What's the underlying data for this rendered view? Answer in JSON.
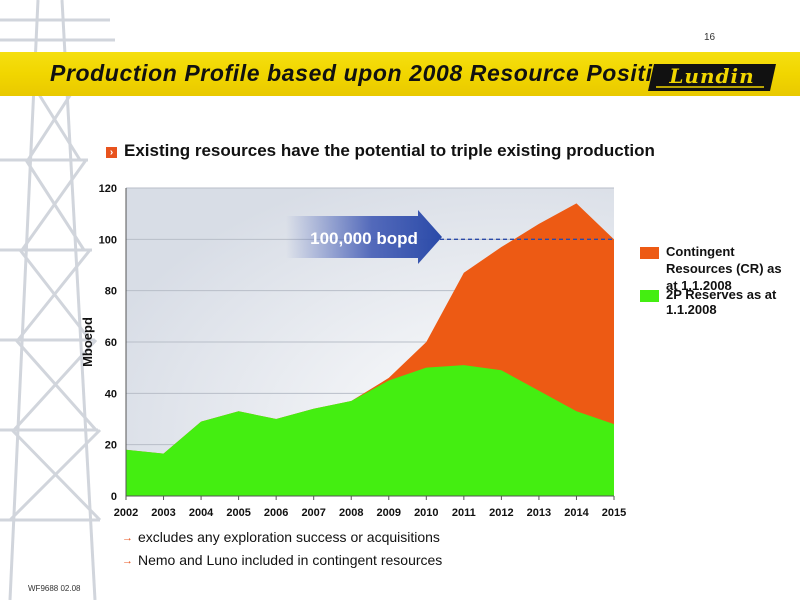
{
  "page_number": "16",
  "title": "Production Profile based upon 2008 Resource Position",
  "logo_text": "Lundin",
  "headline": "Existing resources have the potential to triple existing production",
  "notes": [
    "excludes any exploration success  or acquisitions",
    "Nemo and Luno included in contingent resources"
  ],
  "footer_code": "WF9688 02.08",
  "colors": {
    "contingent": "#ed5a14",
    "reserves": "#44ee11",
    "title_band": "#f1d600",
    "arrow": "#3a54b2"
  },
  "chart_data": {
    "type": "area",
    "stacked": true,
    "x": [
      "2002",
      "2003",
      "2004",
      "2005",
      "2006",
      "2007",
      "2008",
      "2009",
      "2010",
      "2011",
      "2012",
      "2013",
      "2014",
      "2015"
    ],
    "series": [
      {
        "name": "2P Reserves as at 1.1.2008",
        "values": [
          18,
          16.5,
          29,
          33,
          30,
          34,
          37,
          45,
          50,
          51,
          49,
          41,
          33,
          28
        ]
      },
      {
        "name": "Contingent Resources (CR) as at 1.1.2008",
        "values": [
          0,
          0,
          0,
          0,
          0,
          0,
          0,
          1,
          10,
          36,
          48,
          65,
          81,
          72
        ]
      }
    ],
    "ylabel": "Mboepd",
    "ylim": [
      0,
      120
    ],
    "yticks": [
      0,
      20,
      40,
      60,
      80,
      100,
      120
    ],
    "grid": true,
    "legend_position": "right",
    "annotation": {
      "label": "100,000 bopd",
      "value": 100,
      "style": "dashed-line"
    }
  }
}
